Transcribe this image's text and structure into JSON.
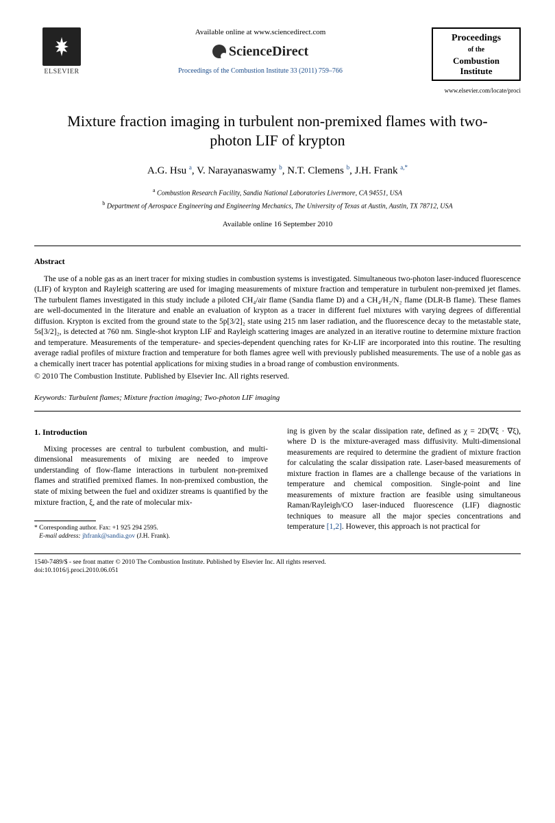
{
  "header": {
    "elsevier": "ELSEVIER",
    "available_online": "Available online at www.sciencedirect.com",
    "sciencedirect": "ScienceDirect",
    "citation": "Proceedings of the Combustion Institute 33 (2011) 759–766",
    "journal_box": {
      "line1": "Proceedings",
      "of": "of the",
      "line2": "Combustion",
      "line3": "Institute"
    },
    "locate_url": "www.elsevier.com/locate/proci"
  },
  "title": "Mixture fraction imaging in turbulent non-premixed flames with two-photon LIF of krypton",
  "authors_html": "A.G. Hsu <sup>a</sup>, V. Narayanaswamy <sup>b</sup>, N.T. Clemens <sup>b</sup>, J.H. Frank <sup>a,*</sup>",
  "affiliations": {
    "a": "Combustion Research Facility, Sandia National Laboratories Livermore, CA 94551, USA",
    "b": "Department of Aerospace Engineering and Engineering Mechanics, The University of Texas at Austin, Austin, TX 78712, USA"
  },
  "available_date": "Available online 16 September 2010",
  "abstract": {
    "heading": "Abstract",
    "text": "The use of a noble gas as an inert tracer for mixing studies in combustion systems is investigated. Simultaneous two-photon laser-induced fluorescence (LIF) of krypton and Rayleigh scattering are used for imaging measurements of mixture fraction and temperature in turbulent non-premixed jet flames. The turbulent flames investigated in this study include a piloted CH₄/air flame (Sandia flame D) and a CH₄/H₂/N₂ flame (DLR-B flame). These flames are well-documented in the literature and enable an evaluation of krypton as a tracer in different fuel mixtures with varying degrees of differential diffusion. Krypton is excited from the ground state to the 5p[3/2]₂ state using 215 nm laser radiation, and the fluorescence decay to the metastable state, 5s[3/2]₂, is detected at 760 nm. Single-shot krypton LIF and Rayleigh scattering images are analyzed in an iterative routine to determine mixture fraction and temperature. Measurements of the temperature- and species-dependent quenching rates for Kr-LIF are incorporated into this routine. The resulting average radial profiles of mixture fraction and temperature for both flames agree well with previously published measurements. The use of a noble gas as a chemically inert tracer has potential applications for mixing studies in a broad range of combustion environments.",
    "copyright": "© 2010 The Combustion Institute. Published by Elsevier Inc. All rights reserved."
  },
  "keywords": {
    "label": "Keywords:",
    "list": "Turbulent flames; Mixture fraction imaging; Two-photon LIF imaging"
  },
  "intro": {
    "heading": "1. Introduction",
    "col1": "Mixing processes are central to turbulent combustion, and multi-dimensional measurements of mixing are needed to improve understanding of flow-flame interactions in turbulent non-premixed flames and stratified premixed flames. In non-premixed combustion, the state of mixing between the fuel and oxidizer streams is quantified by the mixture fraction, ξ, and the rate of molecular mix-",
    "col2_a": "ing is given by the scalar dissipation rate, defined as χ = 2D(∇ξ · ∇ξ), where D is the mixture-averaged mass diffusivity. Multi-dimensional measurements are required to determine the gradient of mixture fraction for calculating the scalar dissipation rate. Laser-based measurements of mixture fraction in flames are a challenge because of the variations in temperature and chemical composition. Single-point and line measurements of mixture fraction are feasible using simultaneous Raman/Rayleigh/CO laser-induced fluorescence (LIF) diagnostic techniques to measure all the major species concentrations and temperature ",
    "refs": "[1,2]",
    "col2_b": ". However, this approach is not practical for"
  },
  "footnote": {
    "corr": "* Corresponding author. Fax: +1 925 294 2595.",
    "email_label": "E-mail address:",
    "email": "jhfrank@sandia.gov",
    "email_who": "(J.H. Frank)."
  },
  "doi": {
    "line1": "1540-7489/$ - see front matter © 2010 The Combustion Institute. Published by Elsevier Inc. All rights reserved.",
    "line2": "doi:10.1016/j.proci.2010.06.051"
  }
}
